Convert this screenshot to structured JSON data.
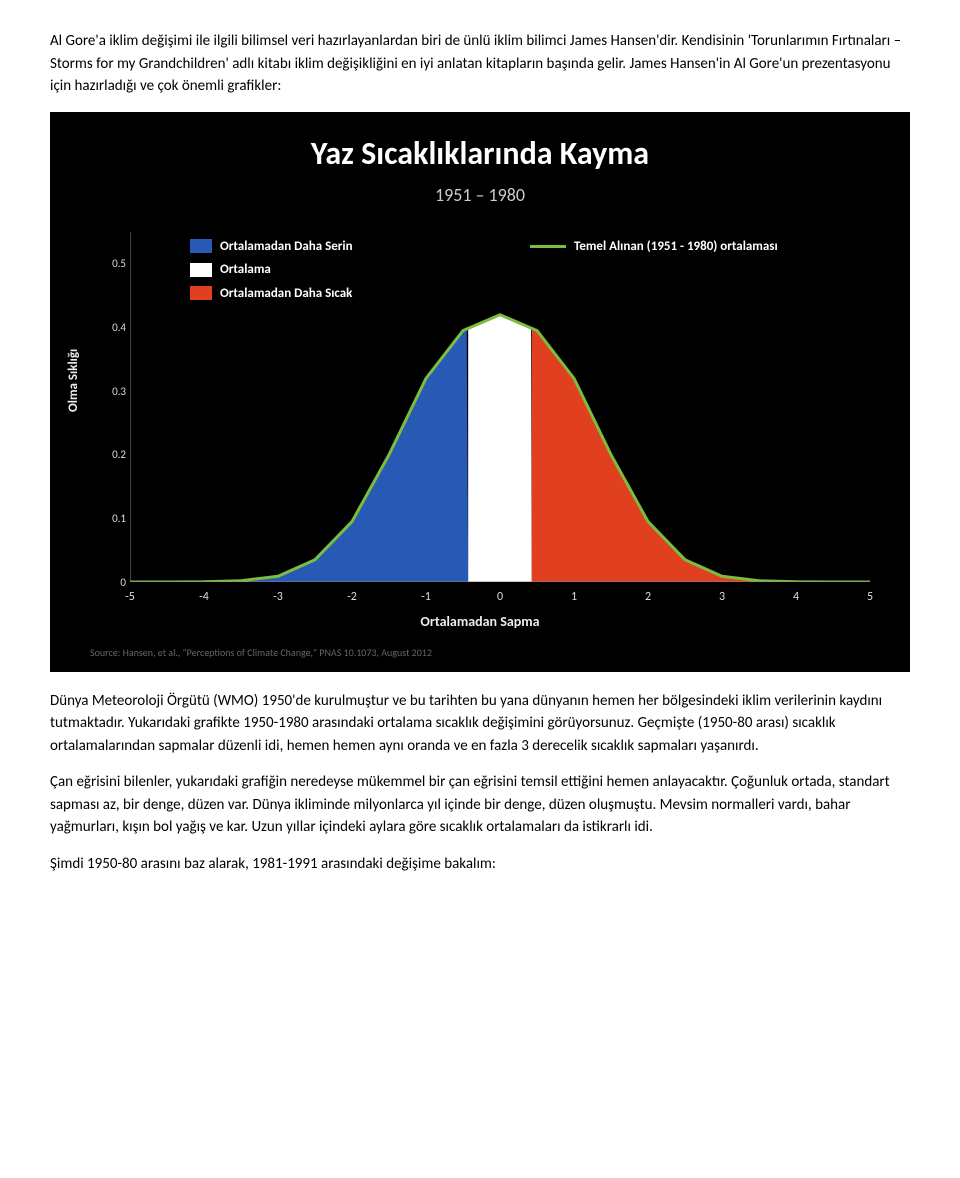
{
  "para1": "Al Gore'a iklim değişimi ile ilgili bilimsel veri hazırlayanlardan biri de ünlü iklim bilimci James Hansen'dir. Kendisinin 'Torunlarımın Fırtınaları – Storms for my Grandchildren' adlı kitabı iklim değişikliğini en iyi anlatan kitapların başında gelir. James Hansen'in Al Gore'un prezentasyonu için hazırladığı ve çok önemli grafikler:",
  "para2": "Dünya Meteoroloji Örgütü (WMO) 1950'de kurulmuştur ve bu tarihten bu yana dünyanın hemen her bölgesindeki iklim verilerinin kaydını tutmaktadır. Yukarıdaki grafikte 1950-1980 arasındaki ortalama sıcaklık değişimini görüyorsunuz. Geçmişte (1950-80 arası) sıcaklık ortalamalarından sapmalar düzenli idi, hemen hemen aynı oranda ve en fazla 3 derecelik sıcaklık sapmaları yaşanırdı.",
  "para3": "Çan eğrisini bilenler, yukarıdaki grafiğin neredeyse mükemmel bir çan eğrisini temsil ettiğini hemen anlayacaktır. Çoğunluk ortada, standart sapması az, bir denge, düzen var. Dünya ikliminde milyonlarca yıl içinde bir denge, düzen oluşmuştu. Mevsim normalleri vardı, bahar yağmurları, kışın bol yağış ve kar. Uzun yıllar içindeki aylara göre sıcaklık ortalamaları da istikrarlı idi.",
  "para4": "Şimdi 1950-80 arasını baz alarak, 1981-1991 arasındaki değişime bakalım:",
  "chart": {
    "type": "area",
    "title": "Yaz Sıcaklıklarında Kayma",
    "subtitle": "1951 – 1980",
    "ylabel": "Olma Sıklığı",
    "xlabel": "Ortalamadan Sapma",
    "source": "Source: Hansen, et al., \"Perceptions of Climate Change,\" PNAS 10.1073, August 2012",
    "legend_items": [
      {
        "label": "Ortalamadan Daha Serin",
        "color": "#2759b5"
      },
      {
        "label": "Ortalama",
        "color": "#ffffff"
      },
      {
        "label": "Ortalamadan Daha Sıcak",
        "color": "#e04020"
      }
    ],
    "baseline_label": "Temel Alınan  (1951 - 1980) ortalaması",
    "baseline_color": "#7bbd3c",
    "background_color": "#000000",
    "text_color": "#ffffff",
    "grid_color": "#222222",
    "xlim": [
      -5,
      5
    ],
    "ylim": [
      0,
      0.55
    ],
    "xticks": [
      -5,
      -4,
      -3,
      -2,
      -1,
      0,
      1,
      2,
      3,
      4,
      5
    ],
    "yticks": [
      0,
      0.1,
      0.2,
      0.3,
      0.4,
      0.5
    ],
    "regions": [
      {
        "from": -5,
        "to": -0.43,
        "color": "#2759b5"
      },
      {
        "from": -0.43,
        "to": 0.43,
        "color": "#ffffff"
      },
      {
        "from": 0.43,
        "to": 5,
        "color": "#e04020"
      }
    ],
    "curve": [
      [
        -5,
        2e-06
      ],
      [
        -4.5,
        3e-05
      ],
      [
        -4,
        0.0003
      ],
      [
        -3.5,
        0.002
      ],
      [
        -3,
        0.009
      ],
      [
        -2.5,
        0.035
      ],
      [
        -2,
        0.095
      ],
      [
        -1.5,
        0.2
      ],
      [
        -1,
        0.32
      ],
      [
        -0.5,
        0.395
      ],
      [
        0,
        0.42
      ],
      [
        0.5,
        0.395
      ],
      [
        1,
        0.32
      ],
      [
        1.5,
        0.2
      ],
      [
        2,
        0.095
      ],
      [
        2.5,
        0.035
      ],
      [
        3,
        0.009
      ],
      [
        3.5,
        0.002
      ],
      [
        4,
        0.0003
      ],
      [
        4.5,
        3e-05
      ],
      [
        5,
        2e-06
      ]
    ],
    "line_width": 3,
    "title_fontsize": 32,
    "subtitle_fontsize": 18,
    "label_fontsize": 13
  }
}
